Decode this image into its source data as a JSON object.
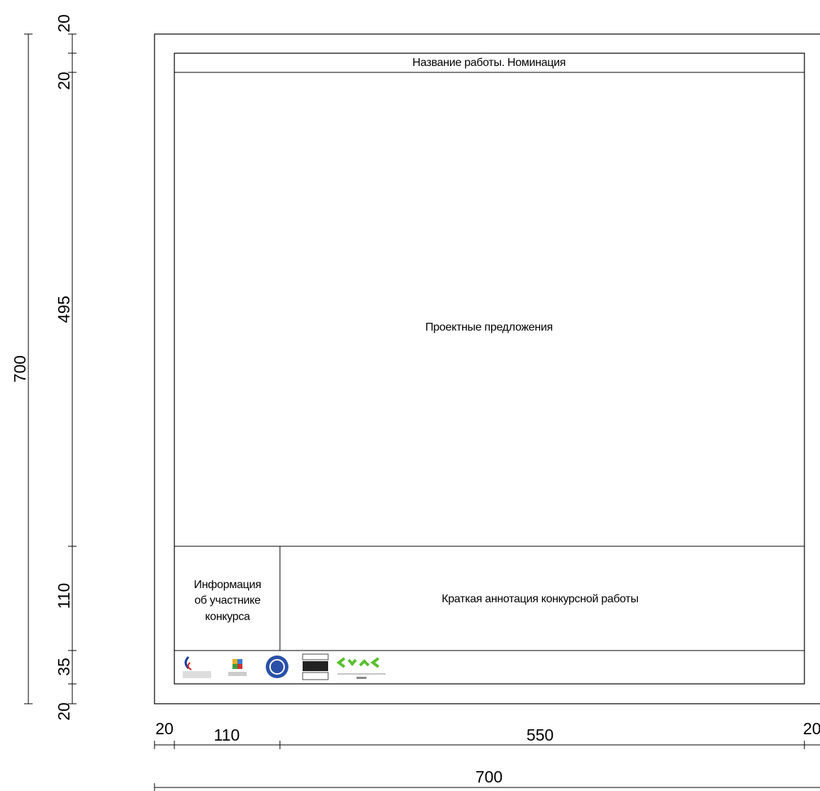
{
  "header": {
    "title": "Название работы. Номинация"
  },
  "main": {
    "label": "Проектные предложения"
  },
  "info": {
    "lines": [
      "Информация",
      "об участнике",
      "конкурса"
    ]
  },
  "annotation": {
    "label": "Краткая аннотация конкурсной работы"
  },
  "dimensions": {
    "vertical": {
      "total": "700",
      "parts": [
        "20",
        "20",
        "495",
        "110",
        "35",
        "20"
      ]
    },
    "horizontal": {
      "total": "700",
      "parts": [
        "20",
        "110",
        "550",
        "20"
      ]
    }
  }
}
